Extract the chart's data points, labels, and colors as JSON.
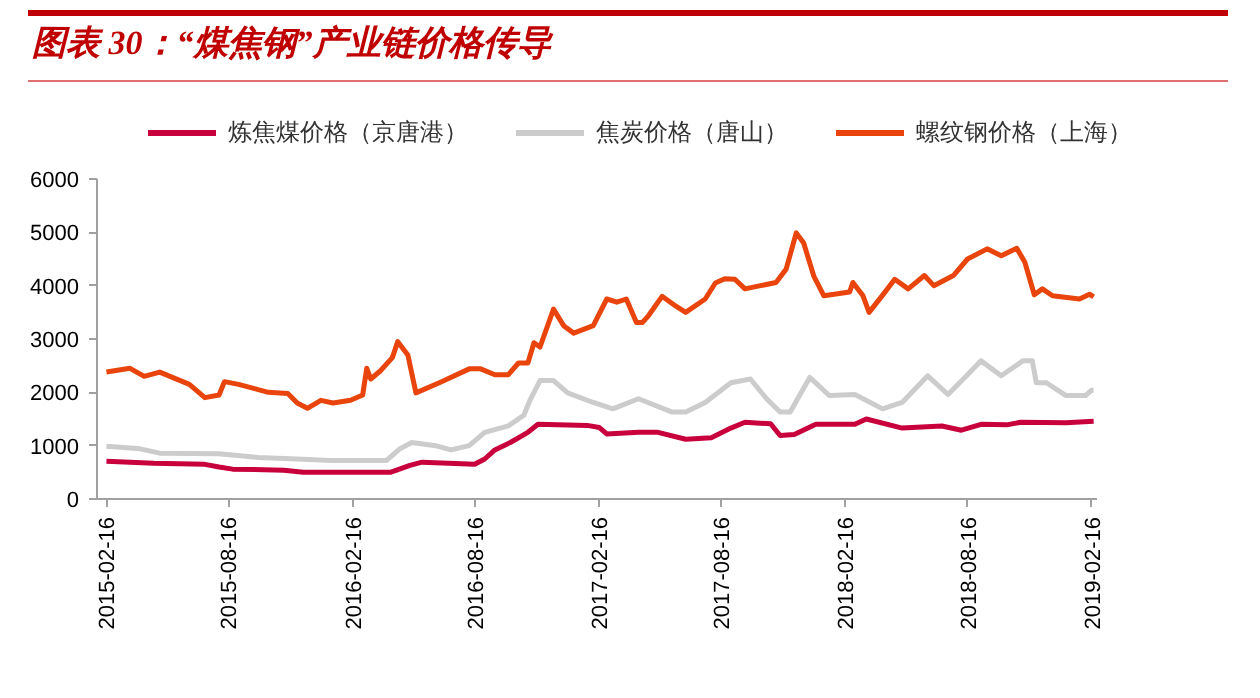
{
  "chart_data": {
    "type": "line",
    "title": "图表 30：“煤焦钢”产业链价格传导",
    "legend": "top",
    "xlim": [
      "2015-02-02",
      "2019-02-24"
    ],
    "ylim": [
      0,
      6000
    ],
    "yticks": [
      0,
      1000,
      2000,
      3000,
      4000,
      5000,
      6000
    ],
    "xticks": [
      "2015-02-16",
      "2015-08-16",
      "2016-02-16",
      "2016-08-16",
      "2017-02-16",
      "2017-08-16",
      "2018-02-16",
      "2018-08-16",
      "2019-02-16"
    ],
    "series": [
      {
        "name": "炼焦煤价格（京唐港）",
        "color": "#c8003c",
        "x": [
          "2015-02-16",
          "2015-04-27",
          "2015-07-12",
          "2015-08-02",
          "2015-08-22",
          "2015-11-06",
          "2015-12-05",
          "2016-04-12",
          "2016-05-11",
          "2016-05-29",
          "2016-08-15",
          "2016-08-30",
          "2016-09-14",
          "2016-10-07",
          "2016-11-02",
          "2016-11-17",
          "2017-01-29",
          "2017-02-16",
          "2017-02-27",
          "2017-04-15",
          "2017-05-14",
          "2017-06-24",
          "2017-08-01",
          "2017-08-30",
          "2017-09-20",
          "2017-10-28",
          "2017-11-11",
          "2017-12-02",
          "2018-01-03",
          "2018-03-02",
          "2018-03-19",
          "2018-05-11",
          "2018-07-09",
          "2018-08-07",
          "2018-09-05",
          "2018-10-13",
          "2018-11-03",
          "2019-01-09",
          "2019-02-19"
        ],
        "values": [
          710,
          670,
          650,
          600,
          560,
          540,
          500,
          500,
          630,
          690,
          650,
          750,
          920,
          1060,
          1250,
          1400,
          1380,
          1340,
          1220,
          1250,
          1250,
          1120,
          1150,
          1330,
          1440,
          1410,
          1190,
          1210,
          1400,
          1400,
          1500,
          1330,
          1370,
          1290,
          1400,
          1390,
          1440,
          1430,
          1460
        ]
      },
      {
        "name": "焦炭价格（唐山）",
        "color": "#cccccc",
        "x": [
          "2015-02-16",
          "2015-04-07",
          "2015-05-06",
          "2015-08-02",
          "2015-09-29",
          "2015-11-26",
          "2016-01-15",
          "2016-04-06",
          "2016-04-26",
          "2016-05-14",
          "2016-06-18",
          "2016-07-11",
          "2016-08-07",
          "2016-08-30",
          "2016-10-04",
          "2016-10-27",
          "2016-11-05",
          "2016-11-20",
          "2016-12-10",
          "2016-12-31",
          "2017-02-07",
          "2017-03-08",
          "2017-04-15",
          "2017-06-04",
          "2017-06-24",
          "2017-07-23",
          "2017-08-30",
          "2017-09-28",
          "2017-10-22",
          "2017-11-11",
          "2017-11-26",
          "2017-12-25",
          "2018-01-23",
          "2018-03-02",
          "2018-04-12",
          "2018-05-11",
          "2018-06-18",
          "2018-07-18",
          "2018-08-16",
          "2018-09-05",
          "2018-10-05",
          "2018-11-06",
          "2018-11-20",
          "2018-11-26",
          "2018-12-11",
          "2019-01-09",
          "2019-02-07",
          "2019-02-16",
          "2019-02-19"
        ],
        "values": [
          990,
          940,
          860,
          850,
          780,
          750,
          720,
          720,
          940,
          1060,
          1000,
          920,
          1000,
          1250,
          1370,
          1570,
          1850,
          2220,
          2220,
          1990,
          1810,
          1690,
          1880,
          1630,
          1630,
          1810,
          2180,
          2250,
          1880,
          1630,
          1630,
          2280,
          1940,
          1960,
          1690,
          1810,
          2310,
          1960,
          2330,
          2590,
          2310,
          2590,
          2590,
          2180,
          2180,
          1940,
          1940,
          2040,
          2040
        ]
      },
      {
        "name": "螺纹钢价格（上海）",
        "color": "#e8440c",
        "x": [
          "2015-02-16",
          "2015-03-23",
          "2015-04-13",
          "2015-05-06",
          "2015-06-19",
          "2015-07-12",
          "2015-08-02",
          "2015-08-10",
          "2015-08-31",
          "2015-10-14",
          "2015-11-12",
          "2015-11-26",
          "2015-12-11",
          "2015-12-31",
          "2016-01-18",
          "2016-02-13",
          "2016-03-02",
          "2016-03-08",
          "2016-03-14",
          "2016-03-28",
          "2016-04-15",
          "2016-04-23",
          "2016-05-08",
          "2016-05-20",
          "2016-06-27",
          "2016-08-07",
          "2016-08-24",
          "2016-09-14",
          "2016-10-04",
          "2016-10-19",
          "2016-11-02",
          "2016-11-11",
          "2016-11-20",
          "2016-12-10",
          "2016-12-25",
          "2017-01-09",
          "2017-02-07",
          "2017-02-27",
          "2017-03-14",
          "2017-03-28",
          "2017-04-12",
          "2017-04-21",
          "2017-04-30",
          "2017-05-20",
          "2017-06-09",
          "2017-06-24",
          "2017-07-23",
          "2017-08-07",
          "2017-08-21",
          "2017-09-05",
          "2017-09-20",
          "2017-10-13",
          "2017-11-05",
          "2017-11-20",
          "2017-12-05",
          "2017-12-16",
          "2017-12-31",
          "2018-01-15",
          "2018-02-22",
          "2018-02-27",
          "2018-03-14",
          "2018-03-23",
          "2018-04-15",
          "2018-04-30",
          "2018-05-20",
          "2018-06-13",
          "2018-06-27",
          "2018-07-26",
          "2018-08-16",
          "2018-09-14",
          "2018-10-05",
          "2018-10-28",
          "2018-11-09",
          "2018-11-23",
          "2018-12-05",
          "2018-12-20",
          "2019-01-29",
          "2019-02-13",
          "2019-02-19"
        ],
        "values": [
          2380,
          2450,
          2300,
          2380,
          2150,
          1900,
          1950,
          2200,
          2150,
          2000,
          1980,
          1800,
          1700,
          1850,
          1800,
          1850,
          1950,
          2450,
          2250,
          2400,
          2650,
          2950,
          2700,
          1990,
          2200,
          2440,
          2440,
          2330,
          2330,
          2550,
          2550,
          2930,
          2850,
          3560,
          3250,
          3110,
          3250,
          3750,
          3690,
          3750,
          3310,
          3310,
          3440,
          3800,
          3620,
          3500,
          3750,
          4050,
          4130,
          4120,
          3940,
          4000,
          4060,
          4310,
          4990,
          4800,
          4180,
          3810,
          3880,
          4060,
          3810,
          3500,
          3870,
          4120,
          3940,
          4190,
          4000,
          4190,
          4500,
          4690,
          4560,
          4700,
          4440,
          3830,
          3940,
          3810,
          3750,
          3840,
          3790
        ]
      }
    ]
  }
}
